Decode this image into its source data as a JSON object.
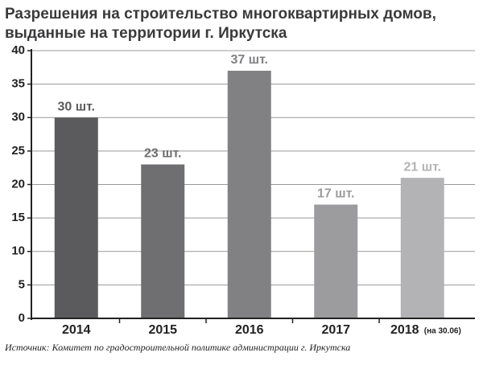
{
  "chart_data": {
    "type": "bar",
    "title": [
      "Разрешения на строительство многоквартирных домов,",
      "выданные на территории г. Иркутска"
    ],
    "categories": [
      "2014",
      "2015",
      "2016",
      "2017",
      "2018"
    ],
    "category_notes": [
      null,
      null,
      null,
      null,
      "(на 30.06)"
    ],
    "values": [
      30,
      23,
      37,
      17,
      21
    ],
    "value_labels": [
      "30 шт.",
      "23 шт.",
      "37 шт.",
      "17 шт.",
      "21 шт."
    ],
    "colors": [
      "#5b5b5e",
      "#6f6f72",
      "#818184",
      "#9c9c9f",
      "#b3b3b6"
    ],
    "ylim": [
      0,
      40
    ],
    "yticks": [
      0,
      5,
      10,
      15,
      20,
      25,
      30,
      35,
      40
    ],
    "grid": true,
    "source": "Источник: Комитет по градостроительной политике администрации г. Иркутска"
  }
}
